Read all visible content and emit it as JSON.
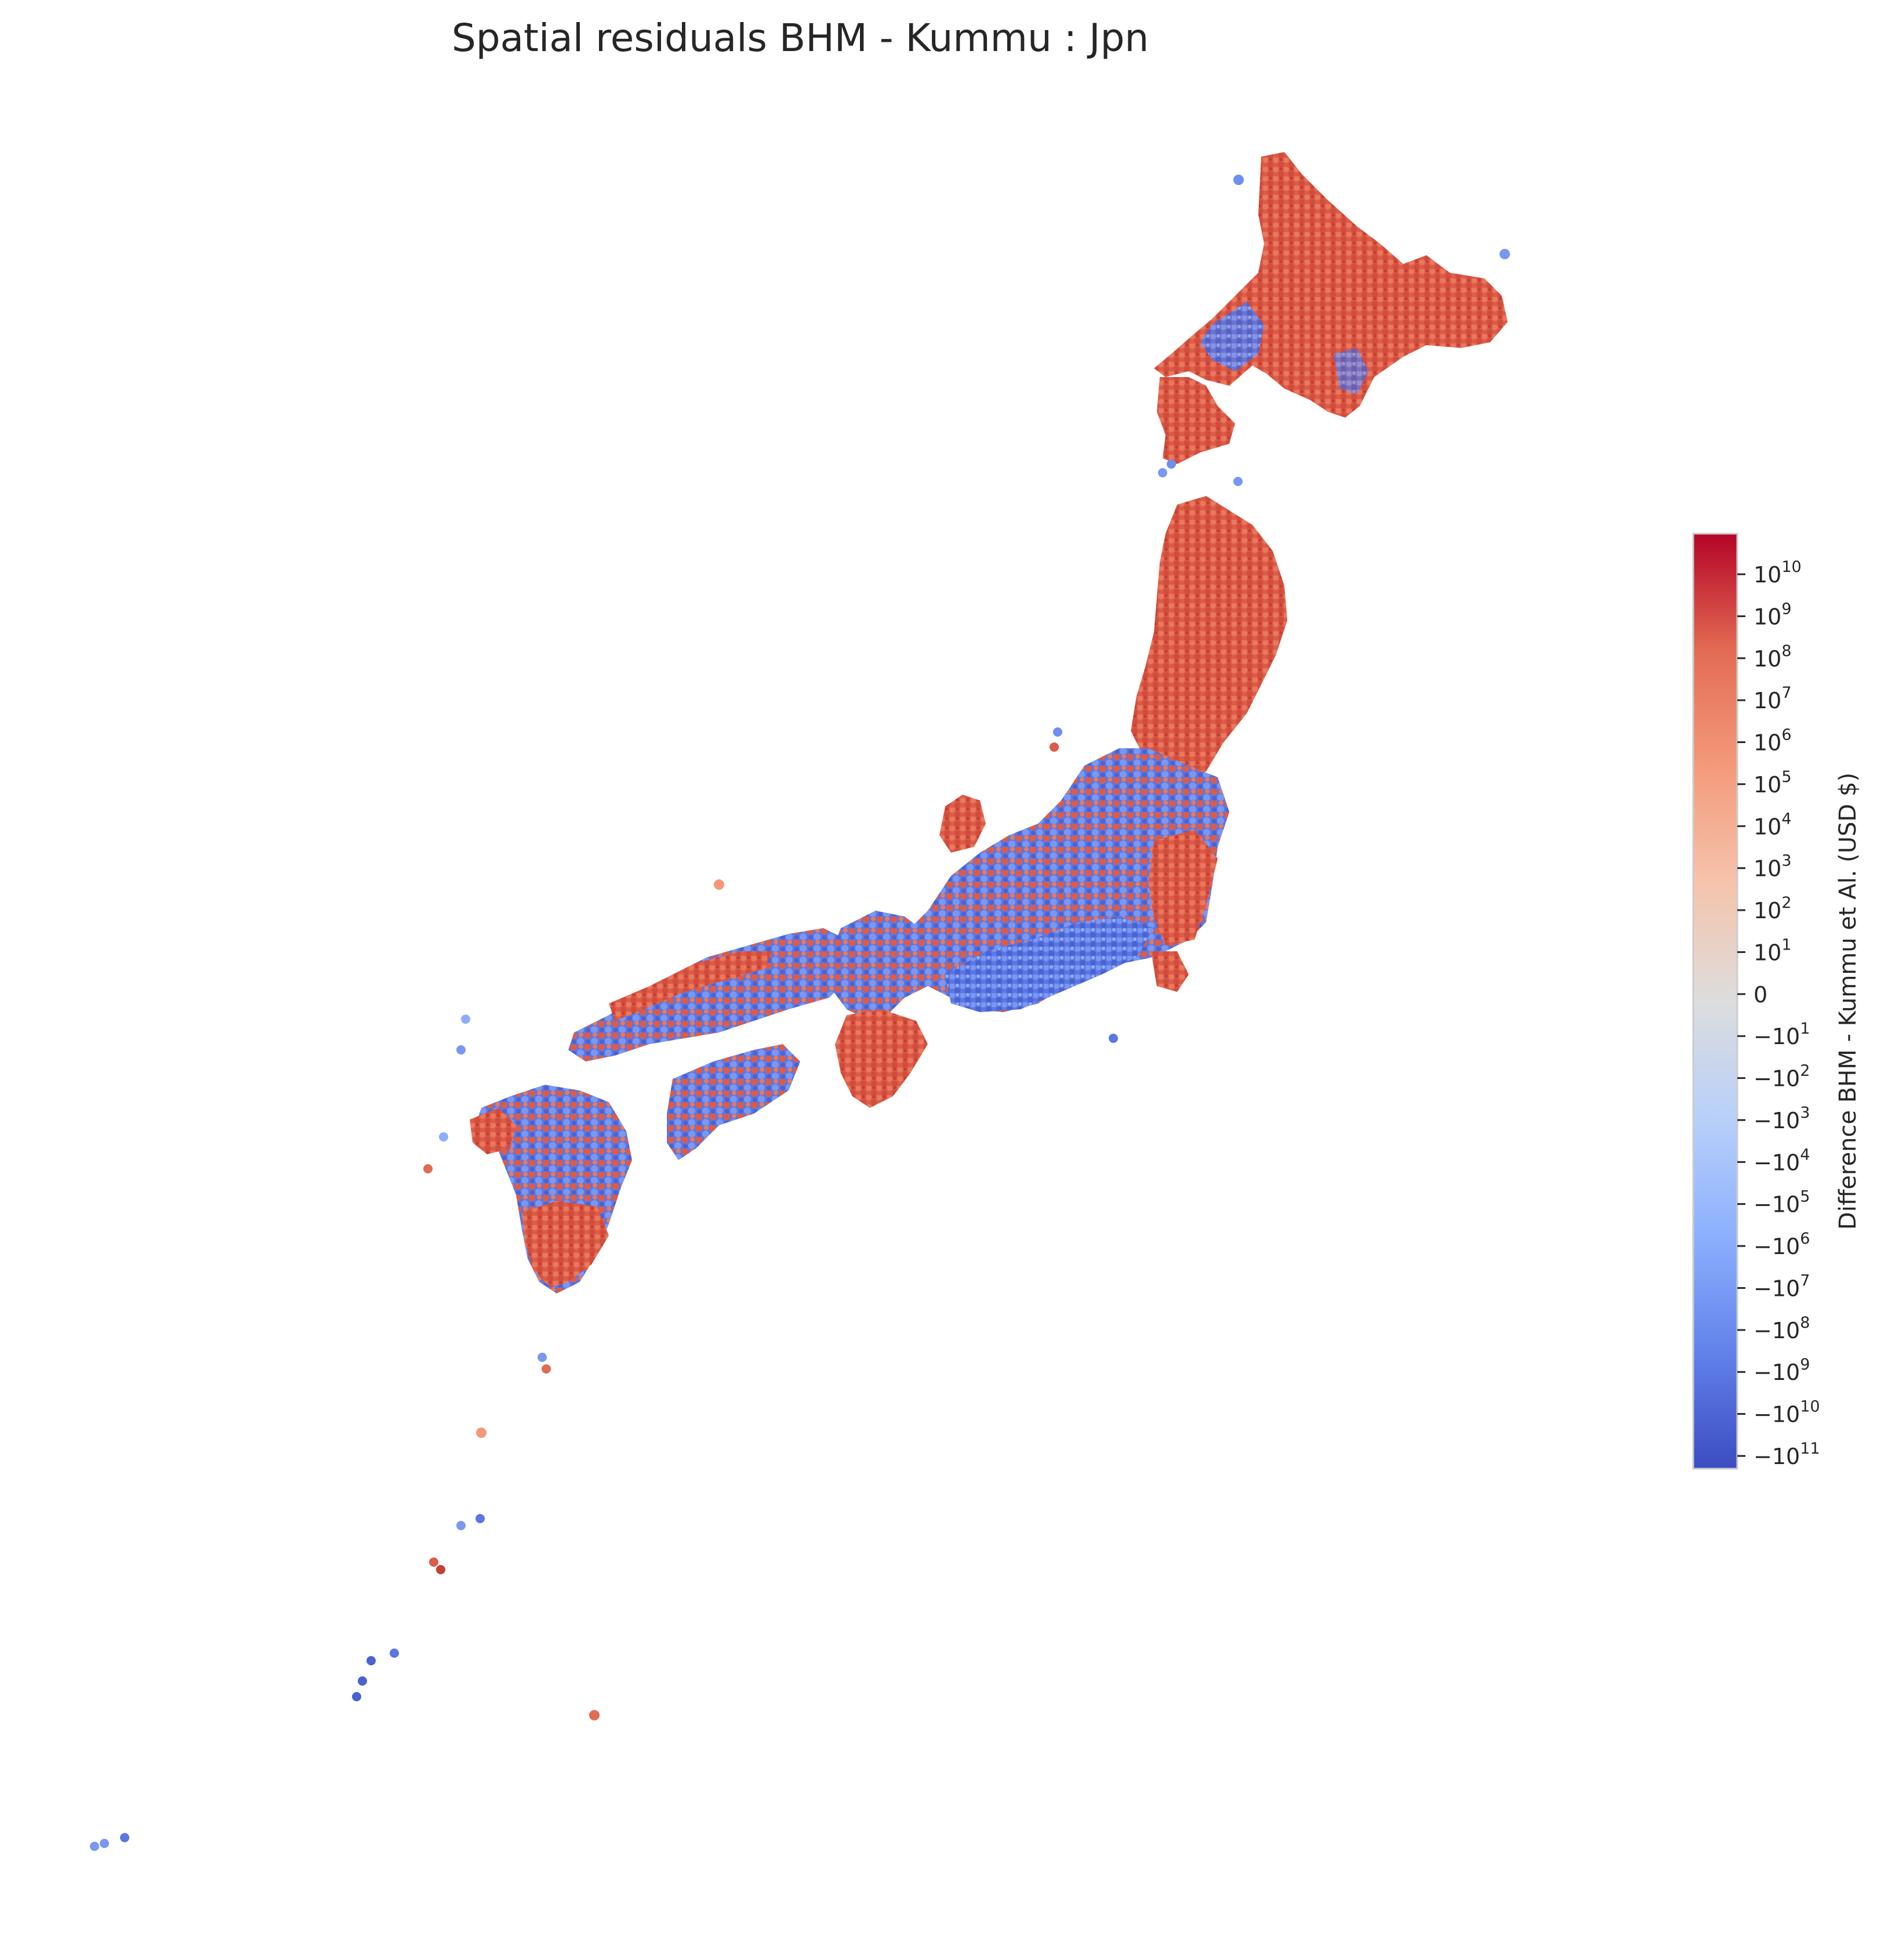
{
  "title": "Spatial residuals BHM - Kummu : Jpn",
  "colorbar": {
    "label": "Difference BHM - Kummu et Al. (USD $)",
    "colormap": "coolwarm",
    "scale": "symlog",
    "colors": [
      "#3b4cc0",
      "#6282ea",
      "#8db0fe",
      "#b8d0f9",
      "#dddddd",
      "#f5c4ac",
      "#f49a7b",
      "#e36b54",
      "#b40426"
    ],
    "ticks": [
      {
        "base": "10",
        "exp": "10"
      },
      {
        "base": "10",
        "exp": "9"
      },
      {
        "base": "10",
        "exp": "8"
      },
      {
        "base": "10",
        "exp": "7"
      },
      {
        "base": "10",
        "exp": "6"
      },
      {
        "base": "10",
        "exp": "5"
      },
      {
        "base": "10",
        "exp": "4"
      },
      {
        "base": "10",
        "exp": "3"
      },
      {
        "base": "10",
        "exp": "2"
      },
      {
        "base": "10",
        "exp": "1"
      },
      {
        "base": "0",
        "exp": ""
      },
      {
        "base": "−10",
        "exp": "1"
      },
      {
        "base": "−10",
        "exp": "2"
      },
      {
        "base": "−10",
        "exp": "3"
      },
      {
        "base": "−10",
        "exp": "4"
      },
      {
        "base": "−10",
        "exp": "5"
      },
      {
        "base": "−10",
        "exp": "6"
      },
      {
        "base": "−10",
        "exp": "7"
      },
      {
        "base": "−10",
        "exp": "8"
      },
      {
        "base": "−10",
        "exp": "9"
      },
      {
        "base": "−10",
        "exp": "10"
      },
      {
        "base": "−10",
        "exp": "11"
      }
    ]
  },
  "map": {
    "region": "Jpn",
    "cell_shape": "hexagon",
    "positive_color": "#dd5b47",
    "negative_color": "#5a78e4"
  }
}
